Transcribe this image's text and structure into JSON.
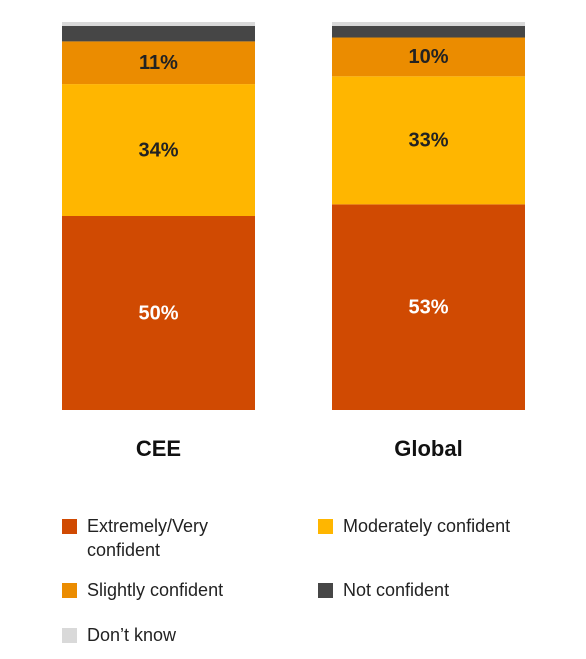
{
  "chart_data": {
    "type": "stacked_bar",
    "categories": [
      "CEE",
      "Global"
    ],
    "ylim": [
      0,
      100
    ],
    "series": [
      {
        "name": "Extremely/Very confident",
        "color": "#d04a02",
        "values": [
          50,
          53
        ],
        "value_labels": [
          "50%",
          "53%"
        ]
      },
      {
        "name": "Moderately confident",
        "color": "#ffb600",
        "values": [
          34,
          33
        ],
        "value_labels": [
          "34%",
          "33%"
        ]
      },
      {
        "name": "Slightly confident",
        "color": "#eb8c00",
        "values": [
          11,
          10
        ],
        "value_labels": [
          "11%",
          "10%"
        ]
      },
      {
        "name": "Not confident",
        "color": "#464646",
        "values": [
          4,
          3
        ]
      },
      {
        "name": "Don’t know",
        "color": "#d9d9d9",
        "values": [
          1,
          1
        ]
      }
    ]
  }
}
